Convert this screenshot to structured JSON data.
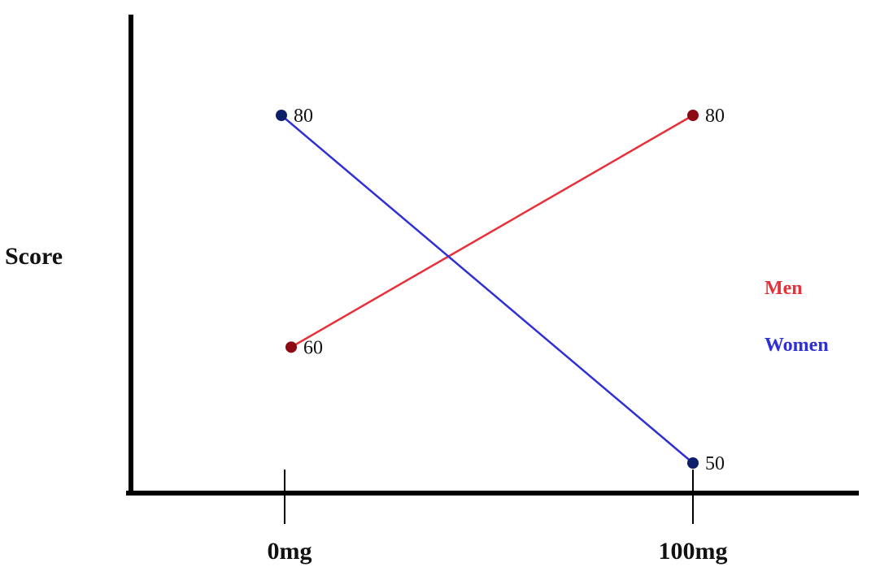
{
  "chart_data": {
    "type": "line",
    "title": "",
    "xlabel": "",
    "ylabel": "Score",
    "categories": [
      "0mg",
      "100mg"
    ],
    "ylim": [
      45,
      92
    ],
    "grid": false,
    "legend_position": "right",
    "series": [
      {
        "name": "Men",
        "values": [
          60,
          80
        ],
        "color": "#e8303a",
        "marker_color": "#8b0a14",
        "data_labels": [
          "60",
          "80"
        ]
      },
      {
        "name": "Women",
        "values": [
          80,
          50
        ],
        "color": "#2f2fd6",
        "marker_color": "#0d1f6b",
        "data_labels": [
          "80",
          "50"
        ]
      }
    ]
  }
}
